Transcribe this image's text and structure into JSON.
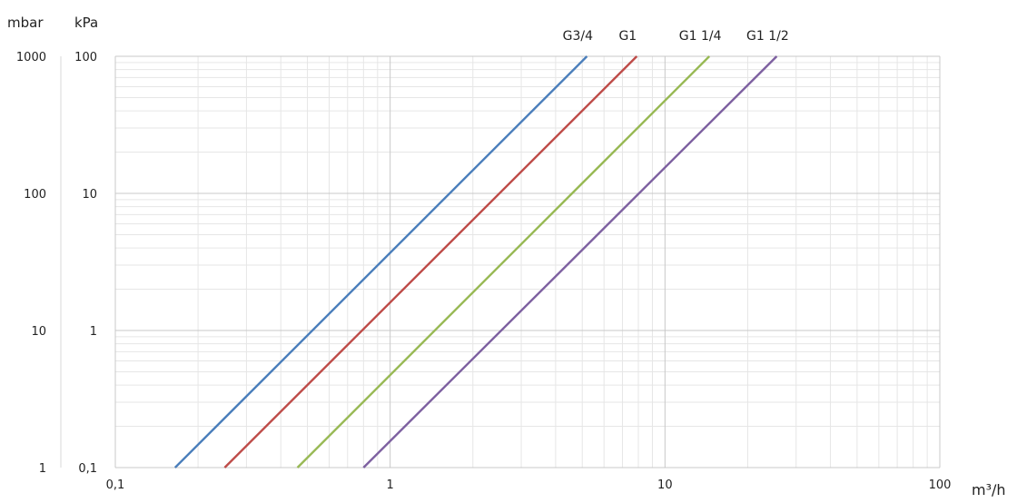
{
  "chart_data": {
    "type": "line",
    "x_scale": "log",
    "y_scale": "log",
    "xlim": [
      0.1,
      100
    ],
    "ylim": [
      0.1,
      100
    ],
    "x_unit_label": "m³/h",
    "y_unit_labels": [
      "mbar",
      "kPa"
    ],
    "x_ticks": [
      {
        "value": 0.1,
        "label": "0,1"
      },
      {
        "value": 1,
        "label": "1"
      },
      {
        "value": 10,
        "label": "10"
      },
      {
        "value": 100,
        "label": "100"
      }
    ],
    "y_ticks_kpa": [
      {
        "value": 0.1,
        "label": "0,1"
      },
      {
        "value": 1,
        "label": "1"
      },
      {
        "value": 10,
        "label": "10"
      },
      {
        "value": 100,
        "label": "100"
      }
    ],
    "y_ticks_mbar": [
      {
        "value": 0.1,
        "label": "1"
      },
      {
        "value": 1,
        "label": "10"
      },
      {
        "value": 10,
        "label": "100"
      },
      {
        "value": 100,
        "label": "1000"
      }
    ],
    "grid": true,
    "series": [
      {
        "name": "G3/4",
        "color": "#4a7ebb",
        "x": [
          0.165,
          5.2
        ],
        "y": [
          0.1,
          100
        ]
      },
      {
        "name": "G1",
        "color": "#be4b48",
        "x": [
          0.25,
          7.9
        ],
        "y": [
          0.1,
          100
        ]
      },
      {
        "name": "G1 1/4",
        "color": "#98b954",
        "x": [
          0.46,
          14.5
        ],
        "y": [
          0.1,
          100
        ]
      },
      {
        "name": "G1 1/2",
        "color": "#7d60a0",
        "x": [
          0.8,
          25.5
        ],
        "y": [
          0.1,
          100
        ]
      }
    ]
  }
}
